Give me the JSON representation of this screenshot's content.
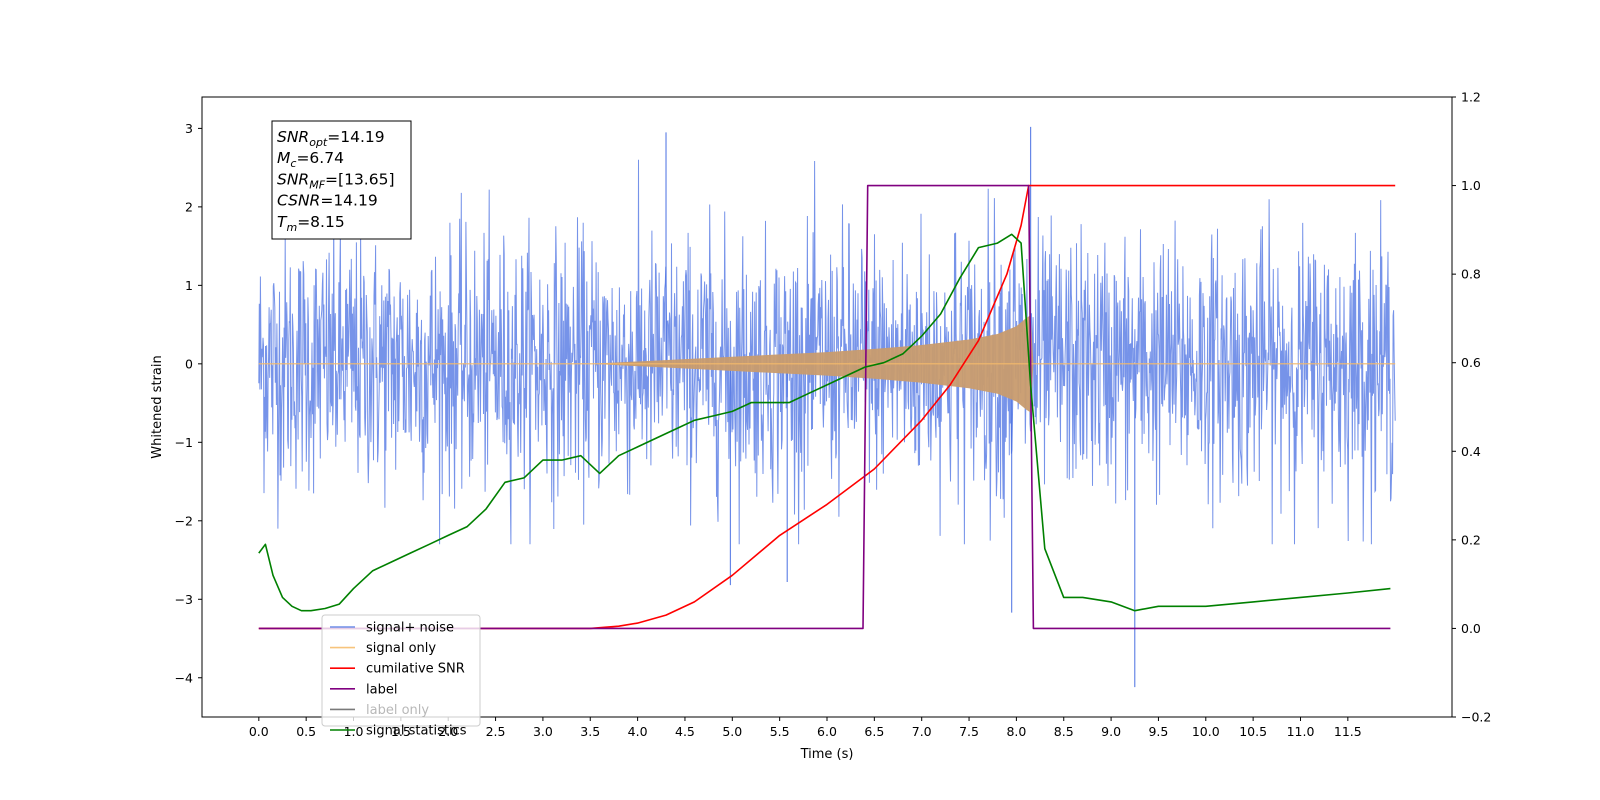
{
  "chart_data": {
    "type": "line",
    "xlabel": "Time (s)",
    "ylabel_left": "Whitened strain",
    "ylabel_right": "",
    "xlim": [
      -0.6,
      12.6
    ],
    "ylim_left": [
      -4.5,
      3.4
    ],
    "ylim_right": [
      -0.2,
      1.2
    ],
    "x_ticks": [
      0.0,
      0.5,
      1.0,
      1.5,
      2.0,
      2.5,
      3.0,
      3.5,
      4.0,
      4.5,
      5.0,
      5.5,
      6.0,
      6.5,
      7.0,
      7.5,
      8.0,
      8.5,
      9.0,
      9.5,
      10.0,
      10.5,
      11.0,
      11.5
    ],
    "y_ticks_left": [
      -4,
      -3,
      -2,
      -1,
      0,
      1,
      2,
      3
    ],
    "y_ticks_right": [
      -0.2,
      0.0,
      0.2,
      0.4,
      0.6,
      0.8,
      1.0,
      1.2
    ],
    "grid": false,
    "legend_position": "lower-left",
    "annotation_box": {
      "position": "top-left",
      "lines": [
        {
          "base": "SNR",
          "sub": "opt",
          "value": "=14.19"
        },
        {
          "base": "M",
          "sub": "c",
          "value": "=6.74"
        },
        {
          "base": "SNR",
          "sub": "MF",
          "value": "=[13.65]"
        },
        {
          "base": "CSNR",
          "sub": "",
          "value": "=14.19"
        },
        {
          "base": "T",
          "sub": "m",
          "value": "=8.15"
        }
      ]
    },
    "series": [
      {
        "name": "signal+ noise",
        "axis": "left",
        "color": "#4169e1",
        "style": "noise",
        "x_range": [
          0.0,
          12.0
        ],
        "noise_sd": 0.8,
        "spikes": [
          {
            "x": 4.3,
            "y": 2.95
          },
          {
            "x": 8.15,
            "y": 3.02
          },
          {
            "x": 9.25,
            "y": -4.12
          },
          {
            "x": 4.98,
            "y": -2.82
          },
          {
            "x": 5.58,
            "y": -2.78
          },
          {
            "x": 7.95,
            "y": -3.17
          }
        ]
      },
      {
        "name": "signal only",
        "axis": "left",
        "color": "#c89b6e",
        "style": "envelope",
        "x_range": [
          0.0,
          12.0
        ],
        "envelope": {
          "x": [
            0.0,
            3.5,
            4.5,
            5.5,
            6.0,
            6.5,
            7.0,
            7.5,
            7.8,
            8.0,
            8.1,
            8.15,
            8.18,
            12.0
          ],
          "a": [
            0.0,
            0.0,
            0.06,
            0.12,
            0.15,
            0.19,
            0.24,
            0.31,
            0.38,
            0.48,
            0.58,
            0.62,
            0.0,
            0.0
          ]
        }
      },
      {
        "name": "cumilative SNR",
        "axis": "right",
        "color": "#ff0000",
        "x": [
          0.0,
          3.5,
          3.8,
          4.0,
          4.3,
          4.6,
          5.0,
          5.5,
          6.0,
          6.5,
          7.0,
          7.3,
          7.6,
          7.9,
          8.05,
          8.12,
          8.13,
          12.0
        ],
        "y": [
          0.0,
          0.0,
          0.005,
          0.012,
          0.03,
          0.06,
          0.12,
          0.21,
          0.28,
          0.36,
          0.47,
          0.55,
          0.65,
          0.8,
          0.91,
          0.99,
          1.0,
          1.0
        ]
      },
      {
        "name": "label",
        "axis": "right",
        "color": "#800080",
        "x": [
          0.0,
          6.38,
          6.43,
          8.13,
          8.18,
          11.95
        ],
        "y": [
          0.0,
          0.0,
          1.0,
          1.0,
          0.0,
          0.0
        ]
      },
      {
        "name": "label only",
        "axis": "right",
        "color": "#7a7a7a",
        "visible_in_plot": false,
        "x": [],
        "y": []
      },
      {
        "name": "signal statistics",
        "axis": "right",
        "color": "#008000",
        "x": [
          0.0,
          0.07,
          0.15,
          0.25,
          0.35,
          0.45,
          0.55,
          0.7,
          0.85,
          1.0,
          1.2,
          1.4,
          1.6,
          1.8,
          2.0,
          2.2,
          2.4,
          2.6,
          2.8,
          3.0,
          3.2,
          3.4,
          3.6,
          3.8,
          4.0,
          4.2,
          4.4,
          4.6,
          4.8,
          5.0,
          5.2,
          5.4,
          5.6,
          5.8,
          6.0,
          6.2,
          6.4,
          6.6,
          6.8,
          7.0,
          7.2,
          7.4,
          7.6,
          7.8,
          7.95,
          8.05,
          8.15,
          8.3,
          8.5,
          8.7,
          9.0,
          9.25,
          9.5,
          10.0,
          10.5,
          11.0,
          11.5,
          11.95
        ],
        "y": [
          0.17,
          0.19,
          0.12,
          0.07,
          0.05,
          0.04,
          0.04,
          0.045,
          0.055,
          0.09,
          0.13,
          0.15,
          0.17,
          0.19,
          0.21,
          0.23,
          0.27,
          0.33,
          0.34,
          0.38,
          0.38,
          0.39,
          0.35,
          0.39,
          0.41,
          0.43,
          0.45,
          0.47,
          0.48,
          0.49,
          0.51,
          0.51,
          0.51,
          0.53,
          0.55,
          0.57,
          0.59,
          0.6,
          0.62,
          0.66,
          0.71,
          0.79,
          0.86,
          0.87,
          0.89,
          0.87,
          0.55,
          0.18,
          0.07,
          0.07,
          0.06,
          0.04,
          0.05,
          0.05,
          0.06,
          0.07,
          0.08,
          0.09
        ]
      }
    ]
  }
}
